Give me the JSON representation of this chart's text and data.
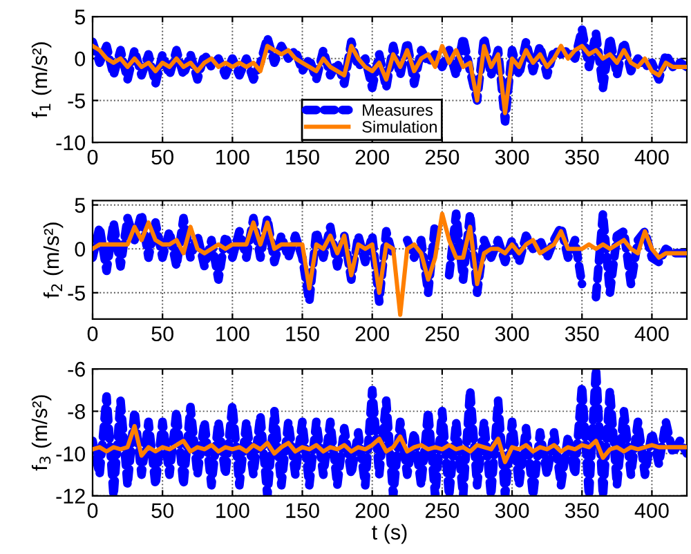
{
  "chart_data": [
    {
      "type": "line",
      "ylabel": "f$_{1}$ (m/s²)",
      "xlim": [
        0,
        425
      ],
      "xticks": [
        0,
        50,
        100,
        150,
        200,
        250,
        300,
        350,
        400
      ],
      "ylim": [
        -10,
        5
      ],
      "yticks": [
        -10,
        -5,
        0,
        5
      ],
      "grid": true,
      "legend": "bottom",
      "x": [
        0,
        5,
        10,
        15,
        20,
        25,
        30,
        35,
        40,
        45,
        50,
        55,
        60,
        65,
        70,
        75,
        80,
        85,
        90,
        95,
        100,
        105,
        110,
        115,
        120,
        125,
        130,
        135,
        140,
        145,
        150,
        155,
        160,
        165,
        170,
        175,
        180,
        185,
        190,
        195,
        200,
        205,
        210,
        215,
        220,
        225,
        230,
        235,
        240,
        245,
        250,
        255,
        260,
        265,
        270,
        275,
        280,
        285,
        290,
        295,
        300,
        305,
        310,
        315,
        320,
        325,
        330,
        335,
        340,
        345,
        350,
        355,
        360,
        365,
        370,
        375,
        380,
        385,
        390,
        395,
        400,
        405,
        410,
        415,
        420,
        425
      ],
      "series": [
        {
          "name": "Measures",
          "color": "#0000ff",
          "line_style": "dashed",
          "values": [
            2,
            -0.5,
            1.5,
            -2,
            1,
            -2.5,
            1,
            -2,
            0.5,
            -3,
            0.5,
            -2,
            1,
            -2,
            0.5,
            -2.5,
            0.5,
            -1,
            0,
            -2,
            0,
            -2,
            0,
            -2.5,
            -0.5,
            2.5,
            -0.5,
            1.5,
            0,
            1,
            -1.5,
            0,
            -2.5,
            1,
            -2,
            -0.5,
            -3,
            2,
            -1,
            0,
            -3.5,
            0.5,
            -3.5,
            1.5,
            -2,
            2,
            -3,
            1,
            -0.5,
            0.5,
            -1,
            1,
            -2,
            2.5,
            -1.5,
            -5,
            2.5,
            -2,
            1,
            -7.5,
            1,
            -2,
            2,
            -1.5,
            1.5,
            -2,
            1,
            0.5,
            1,
            0,
            3.5,
            -1,
            3,
            -3.5,
            2.5,
            -2,
            2,
            -1.5,
            0,
            -1,
            -0.5,
            -2.5,
            0.5,
            -1,
            -0.5,
            -1
          ]
        },
        {
          "name": "Simulation",
          "color": "#ff7f00",
          "line_style": "solid",
          "values": [
            1.5,
            1,
            0,
            -0.5,
            0,
            -1,
            0,
            -1,
            -0.5,
            -1.5,
            -0.5,
            -1,
            0,
            -1,
            -0.5,
            -1.5,
            -0.5,
            0,
            -1,
            -0.5,
            -1,
            -0.5,
            -1,
            -0.5,
            -1.5,
            1.5,
            1,
            0.5,
            1,
            0,
            -0.5,
            -1,
            -1.5,
            0,
            -1,
            -1.5,
            -2,
            1.5,
            0,
            -1,
            -1.5,
            -0.5,
            -2.5,
            0.5,
            -1,
            1,
            -1.5,
            0,
            0.5,
            -1,
            1.5,
            -0.5,
            1,
            -1,
            -0.5,
            -5,
            1.5,
            -1,
            0.5,
            -6.5,
            0,
            -1,
            1,
            -0.5,
            0.5,
            -1,
            0,
            1.5,
            0,
            1,
            1.5,
            0.5,
            1,
            0,
            0.5,
            -0.5,
            1,
            -0.5,
            -1,
            0,
            -1.5,
            -2,
            -0.5,
            -1,
            -1,
            -1
          ]
        }
      ]
    },
    {
      "type": "line",
      "ylabel": "f$_{2}$ (m/s²)",
      "xlim": [
        0,
        425
      ],
      "xticks": [
        0,
        50,
        100,
        150,
        200,
        250,
        300,
        350,
        400
      ],
      "ylim": [
        -8,
        5.5
      ],
      "yticks": [
        -5,
        0,
        5
      ],
      "grid": true,
      "x": [
        0,
        5,
        10,
        15,
        20,
        25,
        30,
        35,
        40,
        45,
        50,
        55,
        60,
        65,
        70,
        75,
        80,
        85,
        90,
        95,
        100,
        105,
        110,
        115,
        120,
        125,
        130,
        135,
        140,
        145,
        150,
        155,
        160,
        165,
        170,
        175,
        180,
        185,
        190,
        195,
        200,
        205,
        210,
        215,
        220,
        225,
        230,
        235,
        240,
        245,
        250,
        255,
        260,
        265,
        270,
        275,
        280,
        285,
        290,
        295,
        300,
        305,
        310,
        315,
        320,
        325,
        330,
        335,
        340,
        345,
        350,
        355,
        360,
        365,
        370,
        375,
        380,
        385,
        390,
        395,
        400,
        405,
        410,
        415,
        420,
        425
      ],
      "series": [
        {
          "color": "#0000ff",
          "line_style": "dashed",
          "values": [
            -1,
            2.5,
            -2.5,
            3,
            -2,
            3.5,
            1,
            4,
            -1,
            3,
            -1,
            2,
            -2,
            3.5,
            -1,
            1.5,
            -2,
            1,
            -3.5,
            1.5,
            -1,
            2,
            -1,
            3.5,
            -1,
            3.5,
            -1.5,
            1.5,
            -1,
            1.5,
            -1,
            -6,
            2,
            -1,
            2.5,
            -2,
            1.5,
            -3.5,
            1.5,
            -1.5,
            1.5,
            -6,
            2,
            -1,
            null,
            1,
            -1,
            1,
            -5,
            3,
            null,
            -3,
            4,
            -3.5,
            4,
            -5,
            1,
            -1,
            1,
            -1.5,
            1,
            -1.5,
            1.5,
            0,
            1,
            -1,
            1,
            2.5,
            -1,
            1,
            -4,
            null,
            -5.5,
            4,
            -5,
            1.5,
            2,
            -4,
            1,
            2,
            -1,
            -1.5,
            0,
            -0.5,
            -0.5,
            -0.5
          ]
        },
        {
          "color": "#ff7f00",
          "line_style": "solid",
          "values": [
            0,
            0.5,
            0.5,
            0.5,
            0.5,
            0.5,
            2.5,
            1,
            3,
            1,
            0.5,
            0.5,
            1,
            -0.5,
            2.5,
            0,
            -0.5,
            0,
            0.5,
            0,
            0.5,
            0.5,
            0.5,
            3,
            0.5,
            3,
            0,
            0.5,
            0.5,
            0.5,
            0.5,
            -4.5,
            0.5,
            0,
            1.5,
            -0.5,
            1.5,
            -3,
            0.5,
            0,
            0.5,
            -5,
            0.5,
            0,
            -7.5,
            0,
            0.5,
            -0.5,
            -3.5,
            -1,
            4,
            1,
            -1,
            -1,
            2.5,
            -4,
            -0.5,
            0,
            0,
            -0.5,
            0.5,
            -0.5,
            0.5,
            1,
            -0.5,
            0,
            0.5,
            2,
            0,
            0,
            0,
            0.5,
            0,
            0.5,
            0,
            0.5,
            1,
            0,
            -0.5,
            2,
            0,
            -1,
            -0.5,
            -0.5,
            -0.5,
            -0.5
          ]
        }
      ]
    },
    {
      "type": "line",
      "xlabel": "t (s)",
      "ylabel": "f$_{3}$ (m/s²)",
      "xlim": [
        0,
        425
      ],
      "xticks": [
        0,
        50,
        100,
        150,
        200,
        250,
        300,
        350,
        400
      ],
      "ylim": [
        -12,
        -6
      ],
      "yticks": [
        -12,
        -10,
        -8,
        -6
      ],
      "grid": true,
      "x": [
        0,
        5,
        10,
        15,
        20,
        25,
        30,
        35,
        40,
        45,
        50,
        55,
        60,
        65,
        70,
        75,
        80,
        85,
        90,
        95,
        100,
        105,
        110,
        115,
        120,
        125,
        130,
        135,
        140,
        145,
        150,
        155,
        160,
        165,
        170,
        175,
        180,
        185,
        190,
        195,
        200,
        205,
        210,
        215,
        220,
        225,
        230,
        235,
        240,
        245,
        250,
        255,
        260,
        265,
        270,
        275,
        280,
        285,
        290,
        295,
        300,
        305,
        310,
        315,
        320,
        325,
        330,
        335,
        340,
        345,
        350,
        355,
        360,
        365,
        370,
        375,
        380,
        385,
        390,
        395,
        400,
        405,
        410,
        415,
        420,
        425
      ],
      "series": [
        {
          "color": "#0000ff",
          "line_style": "dashed",
          "values": [
            -9.4,
            -11,
            -7.3,
            -12,
            -7.5,
            -11.5,
            -8,
            -11,
            -8.5,
            -11.5,
            -8.5,
            -11,
            -8,
            -11.5,
            -7.8,
            -11,
            -8.5,
            -11.5,
            -8.5,
            -11,
            -7.7,
            -11.5,
            -8.5,
            -11,
            -8.2,
            -12,
            -8,
            -11.5,
            -8.5,
            -11,
            -8.5,
            -11.5,
            -8.5,
            -11,
            -8.5,
            -11.5,
            -8.8,
            -11,
            -9,
            -11.5,
            -7,
            -11,
            -7.5,
            -12,
            -8.5,
            -11,
            -9,
            -11.5,
            -8,
            -12,
            -8,
            -12,
            -8.5,
            -12,
            -7,
            -11.5,
            -8.5,
            -12,
            -7.5,
            -12,
            -8.5,
            -11.5,
            -8.8,
            -12,
            -9,
            -11,
            -9,
            -11.5,
            -9.2,
            -11,
            -6.8,
            -12,
            -6,
            -12,
            -7,
            -11.5,
            -8,
            -11,
            -8.5,
            -11,
            -9,
            -10.5,
            -8.5,
            -10,
            -9.4,
            -10
          ]
        },
        {
          "color": "#ff7f00",
          "line_style": "solid",
          "values": [
            -9.8,
            -9.7,
            -9.9,
            -9.7,
            -9.8,
            -9.7,
            -8.7,
            -10.1,
            -9.7,
            -9.9,
            -9.7,
            -9.8,
            -9.6,
            -9.4,
            -9.9,
            -9.7,
            -9.8,
            -9.6,
            -9.9,
            -9.7,
            -9.8,
            -9.7,
            -9.9,
            -9.6,
            -9.8,
            -9.5,
            -10,
            -9.7,
            -9.5,
            -9.9,
            -9.7,
            -9.8,
            -9.6,
            -9.9,
            -9.7,
            -9.8,
            -9.6,
            -9.9,
            -9.7,
            -9.8,
            -9.6,
            -9.3,
            -9.9,
            -9.7,
            -9.2,
            -9.9,
            -9.7,
            -9.6,
            -9.8,
            -9.7,
            -9.8,
            -9.6,
            -9.8,
            -9.7,
            -9.9,
            -9.6,
            -9.7,
            -9.8,
            -9.3,
            -10.4,
            -9.7,
            -9.8,
            -9.6,
            -9.9,
            -9.7,
            -9.8,
            -9.6,
            -9.9,
            -9.7,
            -9.8,
            -9.6,
            -9.7,
            -9.4,
            -10.2,
            -9.8,
            -9.7,
            -9.9,
            -9.7,
            -9.8,
            -9.7,
            -9.6,
            -9.7,
            -9.7,
            -9.7,
            -9.7,
            -9.7
          ]
        }
      ]
    }
  ]
}
